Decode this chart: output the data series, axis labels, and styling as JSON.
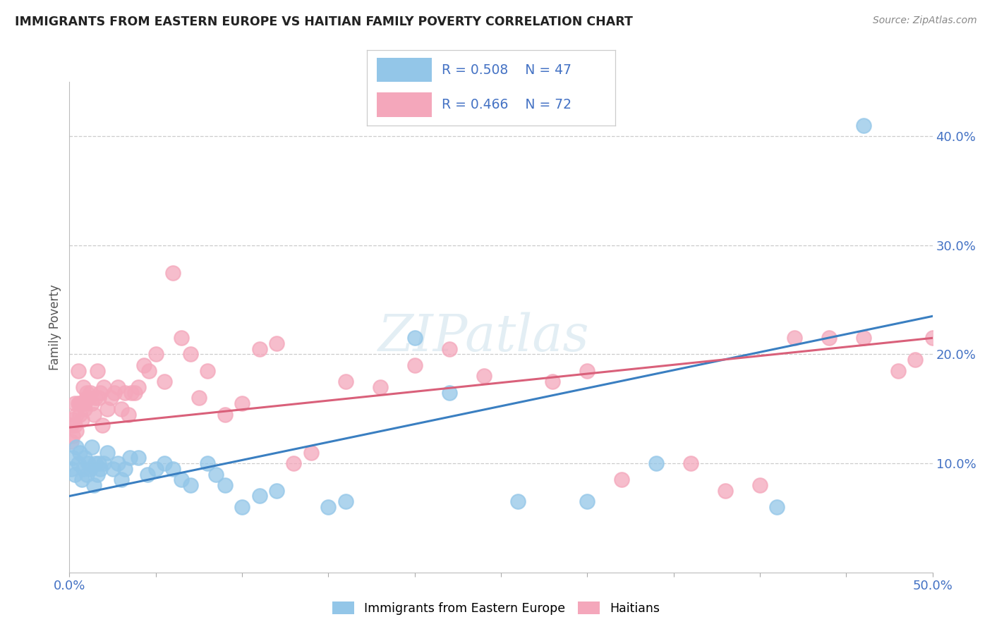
{
  "title": "IMMIGRANTS FROM EASTERN EUROPE VS HAITIAN FAMILY POVERTY CORRELATION CHART",
  "source": "Source: ZipAtlas.com",
  "ylabel": "Family Poverty",
  "xlim": [
    0.0,
    0.5
  ],
  "ylim": [
    0.0,
    0.45
  ],
  "xticks": [
    0.0,
    0.05,
    0.1,
    0.15,
    0.2,
    0.25,
    0.3,
    0.35,
    0.4,
    0.45,
    0.5
  ],
  "xtick_labels": [
    "0.0%",
    "",
    "",
    "",
    "",
    "",
    "",
    "",
    "",
    "",
    "50.0%"
  ],
  "ytick_positions": [
    0.0,
    0.1,
    0.2,
    0.3,
    0.4
  ],
  "ytick_labels": [
    "",
    "10.0%",
    "20.0%",
    "30.0%",
    "40.0%"
  ],
  "blue_R": 0.508,
  "blue_N": 47,
  "pink_R": 0.466,
  "pink_N": 72,
  "blue_color": "#93c6e8",
  "pink_color": "#f4a7bb",
  "blue_line_color": "#3a7fc1",
  "pink_line_color": "#d9607a",
  "legend_label_blue": "Immigrants from Eastern Europe",
  "legend_label_pink": "Haitians",
  "watermark": "ZIPatlas",
  "blue_line_x0": 0.0,
  "blue_line_y0": 0.07,
  "blue_line_x1": 0.5,
  "blue_line_y1": 0.235,
  "pink_line_x0": 0.0,
  "pink_line_y0": 0.133,
  "pink_line_x1": 0.5,
  "pink_line_y1": 0.215,
  "blue_scatter_x": [
    0.001,
    0.002,
    0.003,
    0.004,
    0.005,
    0.006,
    0.007,
    0.008,
    0.009,
    0.01,
    0.011,
    0.012,
    0.013,
    0.014,
    0.015,
    0.016,
    0.017,
    0.018,
    0.02,
    0.022,
    0.025,
    0.028,
    0.03,
    0.032,
    0.035,
    0.04,
    0.045,
    0.05,
    0.055,
    0.06,
    0.065,
    0.07,
    0.08,
    0.085,
    0.09,
    0.1,
    0.11,
    0.12,
    0.15,
    0.16,
    0.2,
    0.22,
    0.26,
    0.3,
    0.34,
    0.41,
    0.46
  ],
  "blue_scatter_y": [
    0.095,
    0.105,
    0.09,
    0.115,
    0.1,
    0.11,
    0.085,
    0.095,
    0.105,
    0.09,
    0.1,
    0.095,
    0.115,
    0.08,
    0.1,
    0.09,
    0.1,
    0.095,
    0.1,
    0.11,
    0.095,
    0.1,
    0.085,
    0.095,
    0.105,
    0.105,
    0.09,
    0.095,
    0.1,
    0.095,
    0.085,
    0.08,
    0.1,
    0.09,
    0.08,
    0.06,
    0.07,
    0.075,
    0.06,
    0.065,
    0.215,
    0.165,
    0.065,
    0.065,
    0.1,
    0.06,
    0.41
  ],
  "pink_scatter_x": [
    0.001,
    0.001,
    0.002,
    0.002,
    0.003,
    0.003,
    0.004,
    0.004,
    0.005,
    0.005,
    0.006,
    0.006,
    0.007,
    0.007,
    0.008,
    0.008,
    0.009,
    0.009,
    0.01,
    0.01,
    0.011,
    0.012,
    0.013,
    0.014,
    0.015,
    0.016,
    0.017,
    0.018,
    0.019,
    0.02,
    0.022,
    0.024,
    0.026,
    0.028,
    0.03,
    0.032,
    0.034,
    0.036,
    0.038,
    0.04,
    0.043,
    0.046,
    0.05,
    0.055,
    0.06,
    0.065,
    0.07,
    0.075,
    0.08,
    0.09,
    0.1,
    0.11,
    0.12,
    0.13,
    0.14,
    0.16,
    0.18,
    0.2,
    0.22,
    0.24,
    0.28,
    0.3,
    0.32,
    0.36,
    0.38,
    0.4,
    0.42,
    0.44,
    0.46,
    0.48,
    0.49,
    0.5
  ],
  "pink_scatter_y": [
    0.135,
    0.12,
    0.14,
    0.125,
    0.155,
    0.135,
    0.145,
    0.13,
    0.185,
    0.155,
    0.155,
    0.145,
    0.155,
    0.14,
    0.155,
    0.17,
    0.155,
    0.15,
    0.165,
    0.16,
    0.16,
    0.165,
    0.155,
    0.145,
    0.16,
    0.185,
    0.16,
    0.165,
    0.135,
    0.17,
    0.15,
    0.16,
    0.165,
    0.17,
    0.15,
    0.165,
    0.145,
    0.165,
    0.165,
    0.17,
    0.19,
    0.185,
    0.2,
    0.175,
    0.275,
    0.215,
    0.2,
    0.16,
    0.185,
    0.145,
    0.155,
    0.205,
    0.21,
    0.1,
    0.11,
    0.175,
    0.17,
    0.19,
    0.205,
    0.18,
    0.175,
    0.185,
    0.085,
    0.1,
    0.075,
    0.08,
    0.215,
    0.215,
    0.215,
    0.185,
    0.195,
    0.215
  ]
}
